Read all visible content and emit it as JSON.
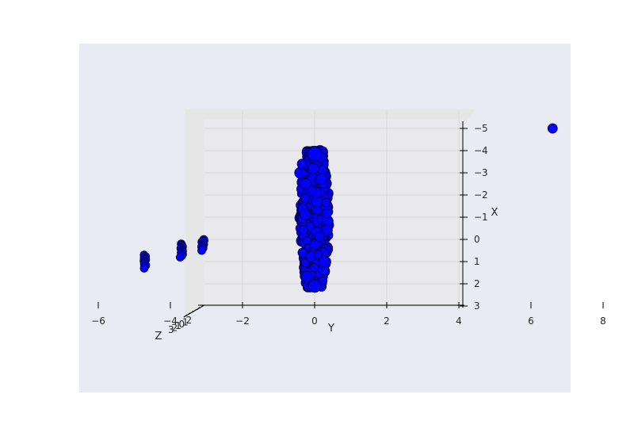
{
  "chart_data": {
    "type": "scatter",
    "title": "",
    "xlabel": "Y",
    "ylabel": "X",
    "zlabel": "Z",
    "view": "3D projection viewed along Z axis (top-down)",
    "x_ticks": [
      "−6",
      "−4",
      "−2",
      "0",
      "2",
      "4",
      "6",
      "8"
    ],
    "y_ticks": [
      "−5",
      "−4",
      "−3",
      "−2",
      "−1",
      "0",
      "1",
      "2",
      "3"
    ],
    "z_ticks_note": "overlapping illegible Z tick labels",
    "xlim": [
      -6.5,
      8
    ],
    "ylim": [
      -5.4,
      3
    ],
    "y_inverted": true,
    "grid": true,
    "colors": {
      "point_fill": "#0000ff",
      "point_edge": "#000033",
      "pane": "#e8e8ed",
      "floor_pane": "#e3e3e3"
    },
    "clusters": [
      {
        "name": "main column",
        "x_center": 0,
        "y_from": -4.0,
        "y_to": 2.2,
        "x_spread": 0.8
      },
      {
        "name": "left group a",
        "x": -4.7,
        "y_from": 0.7,
        "y_to": 1.3
      },
      {
        "name": "left group b",
        "x": -3.7,
        "y_from": 0.2,
        "y_to": 0.8
      },
      {
        "name": "left group c",
        "x": -3.1,
        "y_from": 0.0,
        "y_to": 0.5
      }
    ],
    "outliers": [
      {
        "x": 6.6,
        "y": -5.0
      }
    ]
  }
}
